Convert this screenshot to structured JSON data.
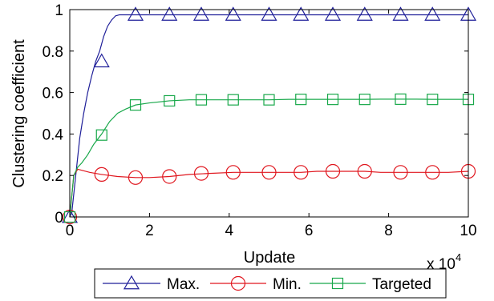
{
  "chart_data": {
    "type": "line",
    "xlabel": "Update",
    "ylabel": "Clustering coefficient",
    "x_multiplier": "x 10",
    "x_multiplier_exp": "4",
    "xlim": [
      0,
      10
    ],
    "ylim": [
      0,
      1
    ],
    "xticks": [
      0,
      2,
      4,
      6,
      8,
      10
    ],
    "yticks": [
      0,
      0.2,
      0.4,
      0.6,
      0.8,
      1
    ],
    "ytick_labels": [
      "0",
      "0.2",
      "0.4",
      "0.6",
      "0.8",
      "1"
    ],
    "xtick_labels": [
      "0",
      "2",
      "4",
      "6",
      "8",
      "10"
    ],
    "grid": false,
    "legend_position": "bottom",
    "series": [
      {
        "name": "Max.",
        "color": "#1f1f99",
        "marker": "triangle",
        "x": [
          0,
          0.05,
          0.15,
          0.25,
          0.35,
          0.45,
          0.55,
          0.65,
          0.75,
          0.85,
          0.95,
          1.05,
          1.15,
          1.25,
          1.35,
          1.6,
          2.5,
          3.3,
          4.1,
          5.0,
          5.8,
          6.6,
          7.4,
          8.3,
          9.1,
          10
        ],
        "y": [
          0,
          0.02,
          0.2,
          0.38,
          0.5,
          0.6,
          0.68,
          0.75,
          0.8,
          0.87,
          0.92,
          0.95,
          0.97,
          0.975,
          0.975,
          0.975,
          0.975,
          0.975,
          0.975,
          0.975,
          0.975,
          0.975,
          0.975,
          0.975,
          0.975,
          0.975
        ],
        "marker_x": [
          0,
          0.8,
          1.65,
          2.5,
          3.3,
          4.1,
          5.0,
          5.8,
          6.6,
          7.4,
          8.3,
          9.1,
          10
        ],
        "marker_y": [
          0,
          0.75,
          0.975,
          0.975,
          0.975,
          0.975,
          0.975,
          0.975,
          0.975,
          0.975,
          0.975,
          0.975,
          0.975
        ]
      },
      {
        "name": "Min.",
        "color": "#e0161e",
        "marker": "circle",
        "x": [
          0,
          0.1,
          0.2,
          0.3,
          0.5,
          0.8,
          1.2,
          1.65,
          2.0,
          2.5,
          3.0,
          3.5,
          4.1,
          4.5,
          5.0,
          5.5,
          5.8,
          6.2,
          6.6,
          7.0,
          7.4,
          7.8,
          8.3,
          8.7,
          9.1,
          9.5,
          10
        ],
        "y": [
          0,
          0.2,
          0.23,
          0.225,
          0.215,
          0.205,
          0.195,
          0.19,
          0.19,
          0.195,
          0.205,
          0.21,
          0.215,
          0.215,
          0.215,
          0.215,
          0.215,
          0.22,
          0.22,
          0.22,
          0.22,
          0.215,
          0.215,
          0.215,
          0.215,
          0.215,
          0.22
        ],
        "marker_x": [
          0,
          0.8,
          1.65,
          2.5,
          3.3,
          4.1,
          5.0,
          5.8,
          6.6,
          7.4,
          8.3,
          9.1,
          10
        ],
        "marker_y": [
          0,
          0.205,
          0.19,
          0.195,
          0.21,
          0.215,
          0.215,
          0.215,
          0.22,
          0.22,
          0.215,
          0.215,
          0.22
        ]
      },
      {
        "name": "Targeted",
        "color": "#18a84a",
        "marker": "square",
        "x": [
          0,
          0.1,
          0.2,
          0.3,
          0.45,
          0.6,
          0.8,
          1.0,
          1.2,
          1.4,
          1.65,
          2.0,
          2.5,
          3.0,
          3.3,
          3.8,
          4.1,
          4.5,
          5.0,
          5.5,
          5.8,
          6.2,
          6.6,
          7.0,
          7.4,
          7.8,
          8.3,
          8.7,
          9.1,
          9.5,
          10
        ],
        "y": [
          0,
          0.2,
          0.24,
          0.26,
          0.3,
          0.35,
          0.4,
          0.46,
          0.5,
          0.52,
          0.54,
          0.55,
          0.56,
          0.565,
          0.565,
          0.565,
          0.565,
          0.565,
          0.565,
          0.567,
          0.567,
          0.567,
          0.567,
          0.567,
          0.567,
          0.568,
          0.568,
          0.568,
          0.567,
          0.567,
          0.567
        ],
        "marker_x": [
          0,
          0.8,
          1.65,
          2.5,
          3.3,
          4.1,
          5.0,
          5.8,
          6.6,
          7.4,
          8.3,
          9.1,
          10
        ],
        "marker_y": [
          0,
          0.395,
          0.54,
          0.56,
          0.565,
          0.565,
          0.565,
          0.567,
          0.567,
          0.567,
          0.568,
          0.567,
          0.567
        ]
      }
    ]
  }
}
